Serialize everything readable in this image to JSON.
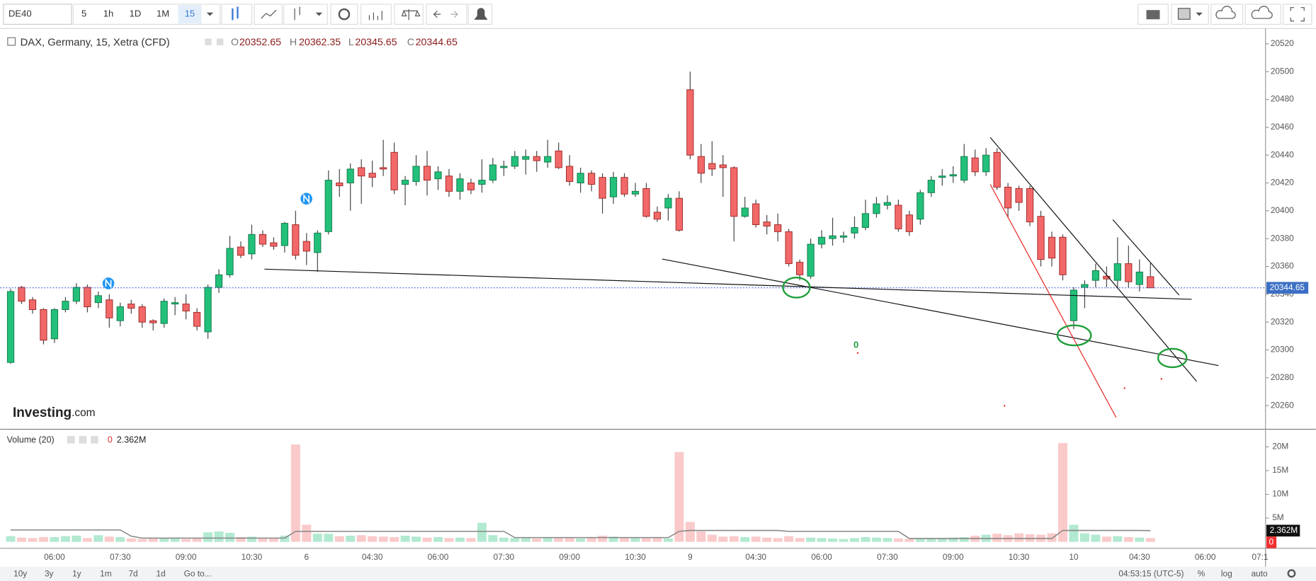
{
  "toolbar": {
    "symbol": "DE40",
    "intervals": [
      "5",
      "1h",
      "1D",
      "1M",
      "15"
    ]
  },
  "chart_data": {
    "type": "candlestick",
    "title": "DAX, Germany, 15, Xetra (CFD)",
    "legend": {
      "labels": [
        "O",
        "H",
        "L",
        "C"
      ],
      "values": [
        20352.65,
        20362.35,
        20345.65,
        20344.65
      ]
    },
    "categories": [
      null,
      null,
      null,
      null,
      "06:00",
      null,
      null,
      null,
      null,
      null,
      "07:30",
      null,
      null,
      null,
      null,
      null,
      "09:00",
      null,
      null,
      null,
      null,
      null,
      "10:30",
      null,
      null,
      null,
      null,
      "6",
      null,
      null,
      null,
      null,
      null,
      "04:30",
      null,
      null,
      null,
      null,
      null,
      "06:00",
      null,
      null,
      null,
      null,
      null,
      "07:30",
      null,
      null,
      null,
      null,
      null,
      "09:00",
      null,
      null,
      null,
      null,
      null,
      "10:30",
      null,
      null,
      null,
      null,
      "9",
      null,
      null,
      null,
      null,
      null,
      "04:30",
      null,
      null,
      null,
      null,
      null,
      "06:00",
      null,
      null,
      null,
      null,
      null,
      "07:30",
      null,
      null,
      null,
      null,
      null,
      "09:00",
      null,
      null,
      null,
      null,
      null,
      "10:30",
      null,
      null,
      null,
      null,
      "10",
      null,
      null,
      null,
      null,
      null,
      "04:30",
      null,
      null,
      null,
      null,
      null,
      "06:00",
      null,
      null,
      null,
      null,
      "07:1"
    ],
    "open": [
      20291,
      20345,
      20336,
      20329,
      20308,
      20329,
      20335,
      20345,
      20334,
      20336,
      20321,
      20333,
      20331,
      20321,
      20319,
      20333,
      20333,
      20327,
      20313,
      20345,
      20354,
      20374,
      20369,
      20383,
      20377,
      20375,
      20390,
      20378,
      20370,
      20385,
      20420,
      20420,
      20431,
      20427,
      20431,
      20442,
      20419,
      20421,
      20432,
      20423,
      20425,
      20414,
      20420,
      20419,
      20422,
      20431,
      20432,
      20437,
      20439,
      20435,
      20443,
      20432,
      20420,
      20427,
      20424,
      20410,
      20424,
      20412,
      20416,
      20399,
      20402,
      20409,
      20487,
      20439,
      20434,
      20433,
      20431,
      20396,
      20405,
      20392,
      20390,
      20385,
      20363,
      20353,
      20376,
      20380,
      20381,
      20384,
      20388,
      20398,
      20404,
      20404,
      20397,
      20394,
      20413,
      20424,
      20425,
      20422,
      20438,
      20428,
      20442,
      20417,
      20416,
      20416,
      20396,
      20381,
      20381,
      20321,
      20345,
      20350,
      20353,
      20350,
      20362,
      20347,
      20352.65,
      null,
      null,
      null,
      null,
      null,
      null,
      null,
      null,
      null,
      null
    ],
    "high": [
      20344,
      20346,
      20338,
      20330,
      20330,
      20338,
      20348,
      20347,
      20342,
      20340,
      20334,
      20336,
      20333,
      20322,
      20337,
      20338,
      20340,
      20330,
      20347,
      20358,
      20382,
      20378,
      20390,
      20386,
      20381,
      20392,
      20400,
      20384,
      20386,
      20429,
      20430,
      20434,
      20437,
      20436,
      20451,
      20449,
      20425,
      20440,
      20443,
      20432,
      20430,
      20427,
      20423,
      20437,
      20438,
      20436,
      20443,
      20444,
      20443,
      20451,
      20449,
      20440,
      20431,
      20429,
      20427,
      20428,
      20427,
      20420,
      20420,
      20403,
      20412,
      20414,
      20500,
      20448,
      20450,
      20440,
      20432,
      20410,
      20408,
      20397,
      20398,
      20387,
      20365,
      20380,
      20386,
      20395,
      20385,
      20396,
      20408,
      20410,
      20411,
      20408,
      20400,
      20415,
      20425,
      20430,
      20432,
      20448,
      20444,
      20445,
      20445,
      20420,
      20418,
      20418,
      20400,
      20385,
      20383,
      20345,
      20350,
      20362,
      20360,
      20381,
      20375,
      20365,
      20362.35,
      null,
      null,
      null,
      null,
      null,
      null,
      null,
      null,
      null,
      null
    ],
    "low": [
      20290,
      20333,
      20326,
      20304,
      20305,
      20327,
      20333,
      20327,
      20330,
      20316,
      20317,
      20326,
      20316,
      20314,
      20316,
      20325,
      20322,
      20314,
      20308,
      20341,
      20352,
      20366,
      20365,
      20374,
      20372,
      20370,
      20365,
      20361,
      20356,
      20383,
      20410,
      20400,
      20405,
      20417,
      20425,
      20412,
      20404,
      20418,
      20411,
      20415,
      20410,
      20408,
      20412,
      20413,
      20420,
      20425,
      20430,
      20426,
      20428,
      20431,
      20430,
      20418,
      20413,
      20414,
      20398,
      20405,
      20410,
      20410,
      20395,
      20392,
      20393,
      20385,
      20437,
      20420,
      20425,
      20410,
      20378,
      20395,
      20388,
      20383,
      20378,
      20360,
      20350,
      20351,
      20373,
      20375,
      20377,
      20380,
      20386,
      20395,
      20401,
      20385,
      20382,
      20390,
      20410,
      20418,
      20420,
      20420,
      20425,
      20425,
      20415,
      20395,
      20400,
      20389,
      20360,
      20360,
      20350,
      20315,
      20330,
      20345,
      20345,
      20345,
      20345,
      20342,
      20345.65,
      null,
      null,
      null,
      null,
      null,
      null,
      null,
      null,
      null,
      null
    ],
    "close": [
      20342,
      20335,
      20329,
      20307,
      20329,
      20335,
      20345,
      20331,
      20339,
      20323,
      20331,
      20330,
      20320,
      20319.5,
      20335,
      20334,
      20328,
      20317,
      20345,
      20354,
      20373,
      20368,
      20383,
      20376,
      20374.5,
      20391,
      20368,
      20371,
      20384,
      20422,
      20418,
      20430,
      20425,
      20424,
      20430,
      20415,
      20422,
      20432,
      20422,
      20428,
      20414,
      20423,
      20415,
      20422,
      20433,
      20432,
      20439,
      20439,
      20436,
      20439,
      20431,
      20421,
      20427,
      20419,
      20409,
      20424,
      20412,
      20414,
      20396,
      20394,
      20409,
      20386,
      20440,
      20427,
      20430,
      20431,
      20396,
      20402,
      20390,
      20389,
      20385,
      20362,
      20354,
      20376,
      20381,
      20382,
      20382,
      20388,
      20398,
      20405,
      20406,
      20387,
      20385,
      20413,
      20422,
      20425,
      20426,
      20439,
      20428,
      20440,
      20417,
      20402,
      20406,
      20392,
      20365,
      20366,
      20354,
      20343,
      20347,
      20357,
      20351,
      20362,
      20349,
      20356,
      20344.65,
      null,
      null,
      null,
      null,
      null,
      null,
      null,
      null,
      null,
      null
    ],
    "up_color": "#22c07a",
    "down_color": "#f26868",
    "ylim": [
      20243,
      20531
    ],
    "yticks": [
      20260,
      20280,
      20300,
      20320,
      20340,
      20360,
      20380,
      20400,
      20420,
      20440,
      20460,
      20480,
      20500,
      20520
    ],
    "grid": false,
    "last_price": 20344.65,
    "watermark": [
      "Investing",
      ".com"
    ],
    "marker_text": "0",
    "volume": {
      "title": "Volume (20)",
      "change": "0",
      "last": "2.362M",
      "values": [
        1.2,
        0.9,
        0.8,
        1.0,
        1.0,
        1.2,
        1.3,
        0.8,
        1.4,
        1.1,
        1.0,
        0.7,
        0.6,
        0.9,
        0.7,
        0.9,
        0.6,
        0.8,
        2.0,
        2.2,
        1.9,
        1.0,
        1.1,
        0.8,
        0.7,
        1.3,
        20.5,
        3.6,
        1.7,
        1.7,
        1.2,
        1.3,
        1.4,
        1.2,
        1.1,
        1.0,
        1.3,
        1.1,
        0.9,
        1.0,
        0.8,
        0.9,
        0.8,
        4.0,
        1.4,
        0.9,
        0.8,
        0.9,
        0.7,
        0.8,
        0.9,
        0.8,
        0.7,
        1.0,
        1.3,
        1.1,
        1.0,
        0.9,
        0.8,
        1.0,
        0.7,
        18.9,
        4.2,
        2.2,
        1.5,
        1.1,
        1.2,
        1.0,
        1.1,
        0.9,
        0.8,
        1.2,
        0.8,
        0.9,
        0.8,
        0.7,
        0.6,
        0.8,
        1.0,
        0.9,
        0.8,
        0.7,
        0.6,
        0.7,
        0.8,
        0.7,
        0.9,
        1.0,
        1.3,
        1.5,
        1.7,
        1.4,
        1.8,
        1.6,
        1.5,
        1.8,
        20.8,
        3.6,
        1.8,
        1.5,
        1.1,
        1.2,
        1.0,
        0.9,
        0.8,
        null,
        null,
        null,
        null,
        null,
        null,
        null,
        null,
        null,
        null
      ],
      "ma": [
        2.5,
        2.5,
        2.5,
        2.5,
        2.5,
        2.5,
        2.5,
        2.5,
        2.5,
        2.5,
        2.5,
        1.2,
        0.8,
        0.8,
        0.8,
        0.8,
        0.8,
        0.8,
        0.8,
        0.8,
        0.8,
        0.8,
        0.8,
        0.8,
        0.8,
        0.8,
        2.2,
        2.2,
        2.2,
        2.2,
        2.2,
        2.2,
        2.2,
        2.2,
        2.2,
        2.2,
        2.2,
        2.2,
        2.2,
        2.2,
        2.2,
        2.2,
        2.2,
        2.2,
        2.2,
        2.2,
        0.9,
        0.9,
        0.9,
        0.9,
        0.9,
        0.9,
        0.9,
        0.9,
        0.9,
        0.9,
        0.9,
        0.9,
        0.9,
        0.9,
        0.9,
        2.2,
        2.4,
        2.4,
        2.4,
        2.4,
        2.4,
        2.4,
        2.4,
        2.4,
        2.4,
        2.2,
        2.2,
        2.2,
        2.2,
        2.2,
        2.2,
        2.2,
        2.2,
        2.2,
        2.2,
        2.2,
        0.7,
        0.7,
        0.7,
        0.7,
        0.7,
        0.7,
        0.7,
        0.7,
        0.7,
        0.7,
        0.7,
        0.7,
        0.7,
        0.7,
        2.4,
        2.4,
        2.4,
        2.4,
        2.4,
        2.4,
        2.4,
        2.4,
        2.362,
        null,
        null,
        null,
        null,
        null,
        null,
        null,
        null,
        null,
        null
      ],
      "ylim": [
        -1.36,
        23.35
      ],
      "yticks": [
        {
          "value": 5,
          "label": "5M"
        },
        {
          "value": 10,
          "label": "10M"
        },
        {
          "value": 15,
          "label": "15M"
        },
        {
          "value": 20,
          "label": "20M"
        }
      ]
    }
  },
  "bottom_bar": {
    "ranges": [
      "10y",
      "3y",
      "1y",
      "1m",
      "7d",
      "1d"
    ],
    "goto": "Go to...",
    "clock": "04:53:15 (UTC-5)",
    "options": [
      "%",
      "log",
      "auto"
    ]
  }
}
